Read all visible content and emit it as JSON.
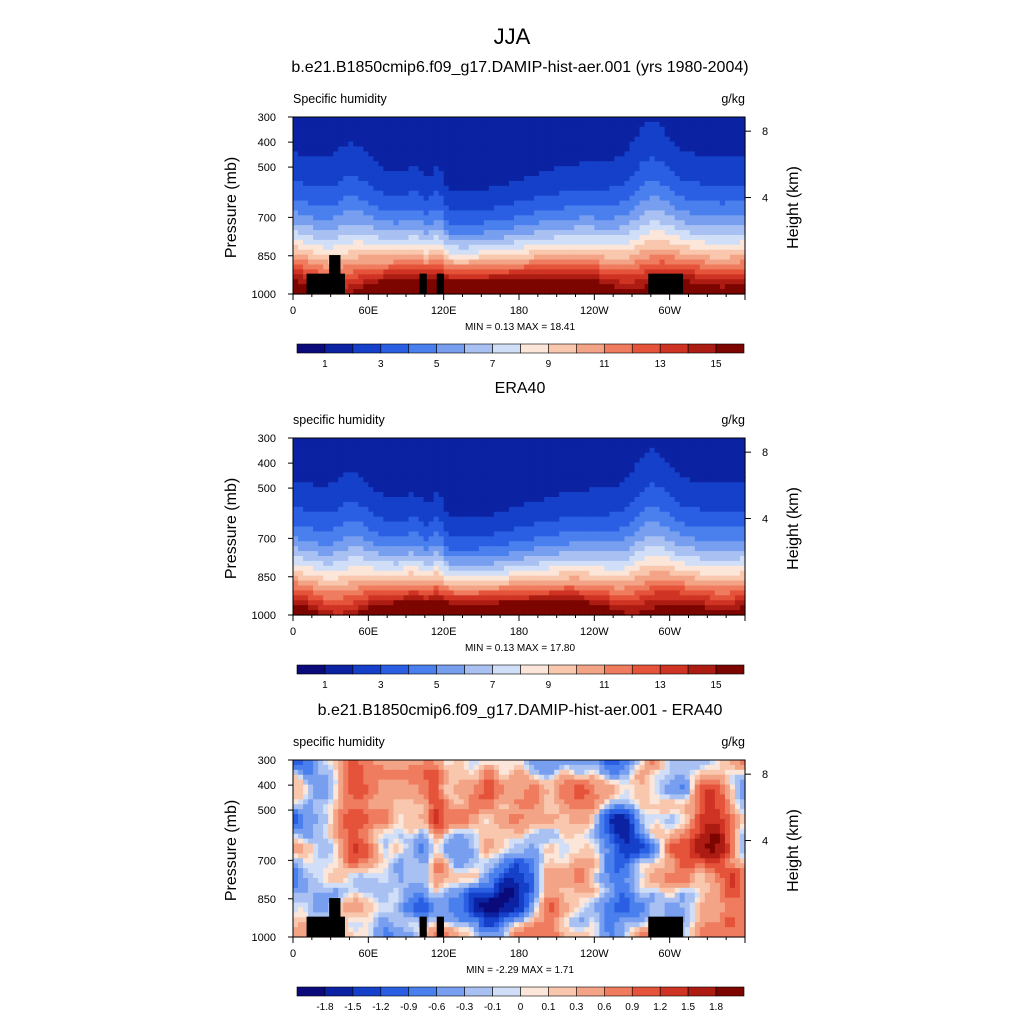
{
  "figure": {
    "title": "JJA"
  },
  "chart_data": [
    {
      "type": "heatmap",
      "title": "b.e21.B1850cmip6.f09_g17.DAMIP-hist-aer.001 (yrs 1980-2004)",
      "left_label": "Specific humidity",
      "right_label": "g/kg",
      "xlabel": "",
      "ylabel": "Pressure (mb)",
      "y2label": "Height (km)",
      "x_ticks": [
        "0",
        "60E",
        "120E",
        "180",
        "120W",
        "60W"
      ],
      "y_ticks": [
        "300",
        "400",
        "500",
        "700",
        "850",
        "1000"
      ],
      "y2_ticks": [
        "8",
        "4"
      ],
      "stats": "MIN =   0.13  MAX =  18.41",
      "colorbar_labels": [
        "1",
        "3",
        "5",
        "7",
        "9",
        "11",
        "13",
        "15"
      ],
      "colorbar_levels": [
        0,
        1,
        2,
        3,
        4,
        5,
        6,
        7,
        8,
        9,
        10,
        11,
        12,
        13,
        14,
        15
      ],
      "min": 0.13,
      "max": 18.41,
      "topography_mask": true
    },
    {
      "type": "heatmap",
      "title": "ERA40",
      "left_label": "specific humidity",
      "right_label": "g/kg",
      "xlabel": "",
      "ylabel": "Pressure (mb)",
      "y2label": "Height (km)",
      "x_ticks": [
        "0",
        "60E",
        "120E",
        "180",
        "120W",
        "60W"
      ],
      "y_ticks": [
        "300",
        "400",
        "500",
        "700",
        "850",
        "1000"
      ],
      "y2_ticks": [
        "8",
        "4"
      ],
      "stats": "MIN =   0.13  MAX =  17.80",
      "colorbar_labels": [
        "1",
        "3",
        "5",
        "7",
        "9",
        "11",
        "13",
        "15"
      ],
      "colorbar_levels": [
        0,
        1,
        2,
        3,
        4,
        5,
        6,
        7,
        8,
        9,
        10,
        11,
        12,
        13,
        14,
        15
      ],
      "min": 0.13,
      "max": 17.8,
      "topography_mask": false
    },
    {
      "type": "heatmap",
      "title": "b.e21.B1850cmip6.f09_g17.DAMIP-hist-aer.001 - ERA40",
      "left_label": "specific humidity",
      "right_label": "g/kg",
      "xlabel": "",
      "ylabel": "Pressure (mb)",
      "y2label": "Height (km)",
      "x_ticks": [
        "0",
        "60E",
        "120E",
        "180",
        "120W",
        "60W"
      ],
      "y_ticks": [
        "300",
        "400",
        "500",
        "700",
        "850",
        "1000"
      ],
      "y2_ticks": [
        "8",
        "4"
      ],
      "stats": "MIN =  -2.29  MAX =   1.71",
      "colorbar_labels": [
        "-1.8",
        "-1.5",
        "-1.2",
        "-0.9",
        "-0.6",
        "-0.3",
        "-0.1",
        "0",
        "0.1",
        "0.3",
        "0.6",
        "0.9",
        "1.2",
        "1.5",
        "1.8"
      ],
      "colorbar_levels": [
        -1.8,
        -1.5,
        -1.2,
        -0.9,
        -0.6,
        -0.3,
        -0.1,
        0,
        0.1,
        0.3,
        0.6,
        0.9,
        1.2,
        1.5,
        1.8
      ],
      "min": -2.29,
      "max": 1.71,
      "topography_mask": true
    }
  ],
  "palette": [
    "#0a0a7a",
    "#0b23a3",
    "#1540c9",
    "#2a5ee3",
    "#4a7fee",
    "#789fef",
    "#a8c1f2",
    "#d0dff7",
    "#fbe6d9",
    "#f8c7ad",
    "#f4a486",
    "#ef7c5e",
    "#e5533b",
    "#cf3323",
    "#ad1c12",
    "#7c0500"
  ]
}
